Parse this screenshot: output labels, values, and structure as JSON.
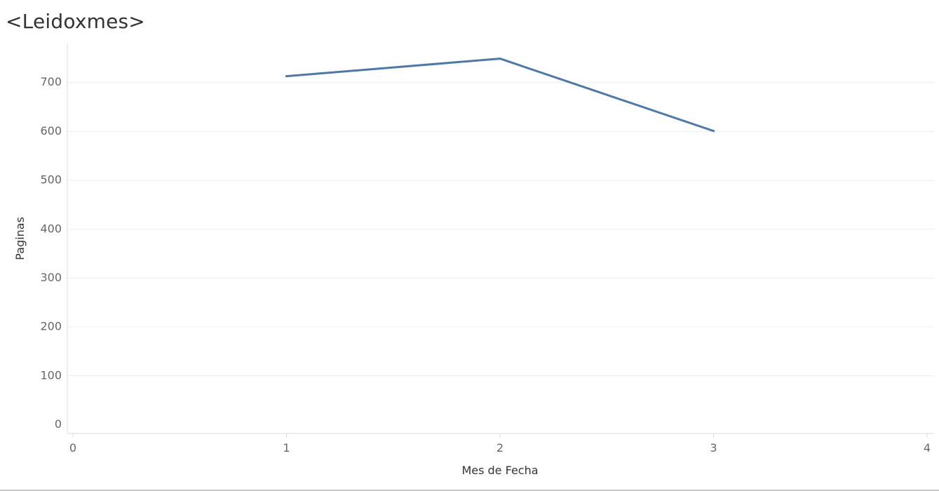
{
  "chart_data": {
    "type": "line",
    "title": "<Leidoxmes>",
    "xlabel": "Mes de Fecha",
    "ylabel": "Paginas",
    "x": [
      1,
      2,
      3
    ],
    "series": [
      {
        "values": [
          713,
          749,
          601
        ]
      }
    ],
    "xlim": [
      0,
      4
    ],
    "ylim": [
      -18,
      780
    ],
    "xticks": [
      "0",
      "1",
      "2",
      "3",
      "4"
    ],
    "yticks": [
      "0",
      "100",
      "200",
      "300",
      "400",
      "500",
      "600",
      "700"
    ],
    "grid": true,
    "legend": "none",
    "colors": {
      "line": "#4e79a7",
      "grid": "#eeeeee",
      "axis": "#dddddd"
    }
  }
}
